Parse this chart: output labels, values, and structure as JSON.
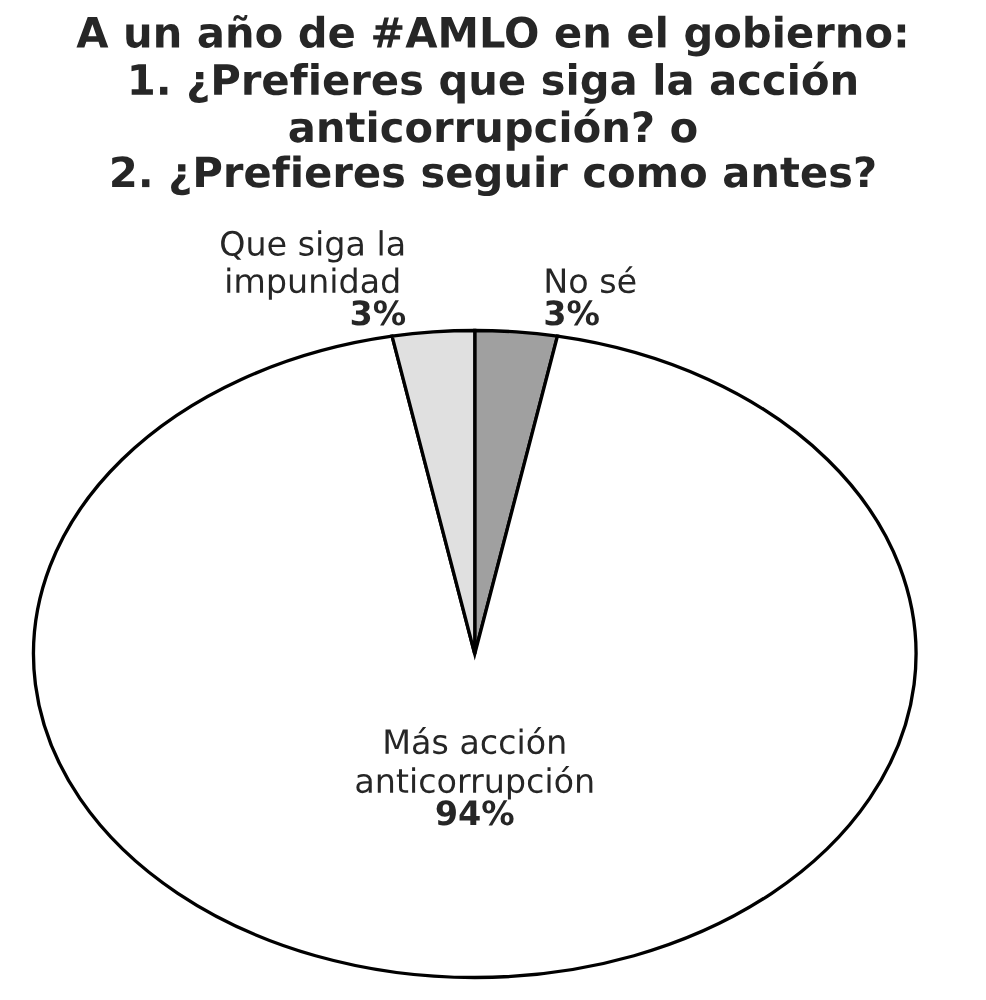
{
  "chart_data": {
    "type": "pie",
    "title": "A un año de #AMLO en el gobierno:\n1. ¿Prefieres que siga la acción\nanticorrupción? o\n2. ¿Prefieres seguir como antes?",
    "categories": [
      "No sé",
      "Más acción\nanticorrupción",
      "Que siga la\nimpunidad"
    ],
    "values": [
      3,
      94,
      3
    ],
    "value_labels": [
      "3%",
      "94%",
      "3%"
    ],
    "colors": [
      "#a0a0a0",
      "#ffffff",
      "#e0e0e0"
    ]
  }
}
